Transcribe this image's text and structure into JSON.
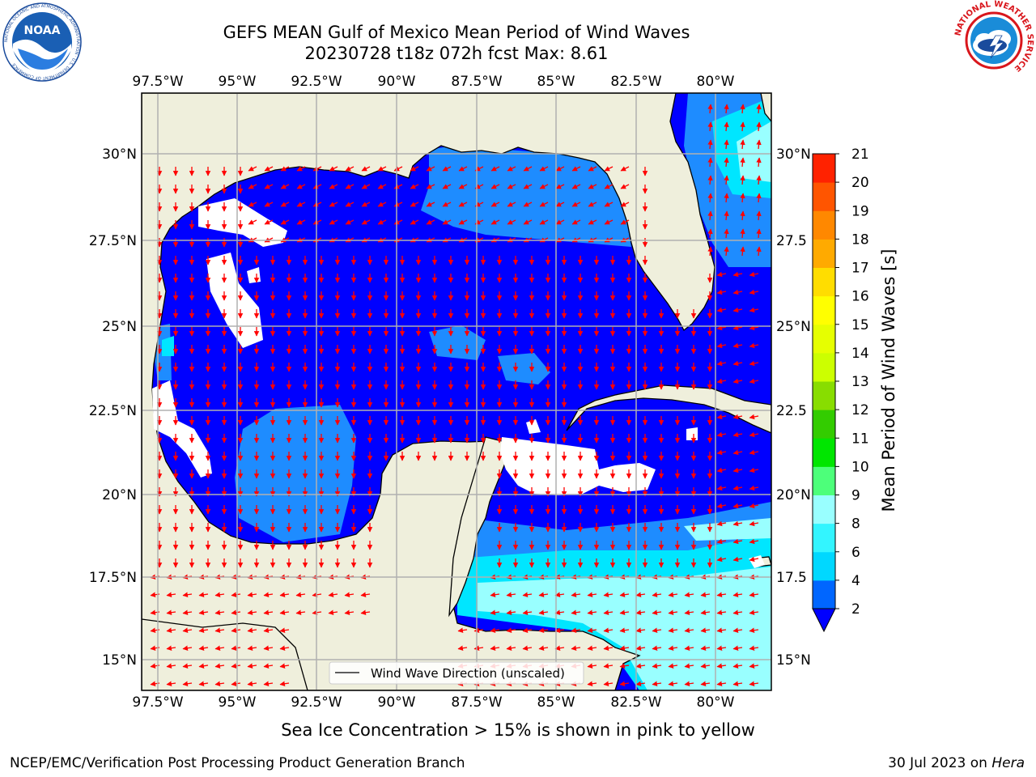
{
  "header": {
    "title_line1": "GEFS MEAN Gulf of Mexico Mean Period of Wind Waves",
    "title_line2": "20230728 t18z 072h fcst   Max: 8.61"
  },
  "logos": {
    "left": "noaa-logo",
    "right": "national-weather-service-logo",
    "left_text": "NOAA",
    "left_ring_text": "NATIONAL OCEANIC AND ATMOSPHERIC ADMINISTRATION · U.S. DEPARTMENT OF COMMERCE",
    "right_ring_text": "NATIONAL WEATHER SERVICE"
  },
  "map": {
    "lon_labels": [
      "97.5°W",
      "95°W",
      "92.5°W",
      "90°W",
      "87.5°W",
      "85°W",
      "82.5°W",
      "80°W"
    ],
    "lat_labels": [
      "30°N",
      "27.5°N",
      "25°N",
      "22.5°N",
      "20°N",
      "17.5°N",
      "15°N"
    ],
    "lat_labels_right": [
      "30°N",
      "27.5",
      "25°N",
      "22.5",
      "20°N",
      "17.5",
      "15°N"
    ],
    "legend_label": "Wind Wave Direction (unscaled)"
  },
  "colorbar": {
    "label": "Mean Period of Wind Waves [s]",
    "ticks": [
      "2",
      "4",
      "6",
      "8",
      "9",
      "10",
      "11",
      "12",
      "13",
      "14",
      "15",
      "16",
      "17",
      "18",
      "19",
      "20",
      "21"
    ],
    "colors": [
      "#0066ff",
      "#00d8ff",
      "#33f5ff",
      "#99ffff",
      "#4dff7a",
      "#00e600",
      "#33cc00",
      "#88dd00",
      "#ccff00",
      "#e6ff00",
      "#ffff00",
      "#ffdd00",
      "#ffaa00",
      "#ff8800",
      "#ff5500",
      "#ff2200",
      "#ff0000"
    ],
    "under_color": "#0000ff"
  },
  "colors": {
    "land": "#efefdc",
    "ocean_deep": "#0000ff",
    "ocean_mid": "#1e8cff",
    "ocean_light": "#00e6ff",
    "ocean_pale": "#99ffff",
    "arrow": "#ff0000"
  },
  "footer": {
    "note": "Sea Ice Concentration > 15% is shown in pink to yellow",
    "left": "NCEP/EMC/Verification Post Processing Product Generation Branch",
    "right_date": "30 Jul 2023 on ",
    "right_host": "Hera"
  }
}
